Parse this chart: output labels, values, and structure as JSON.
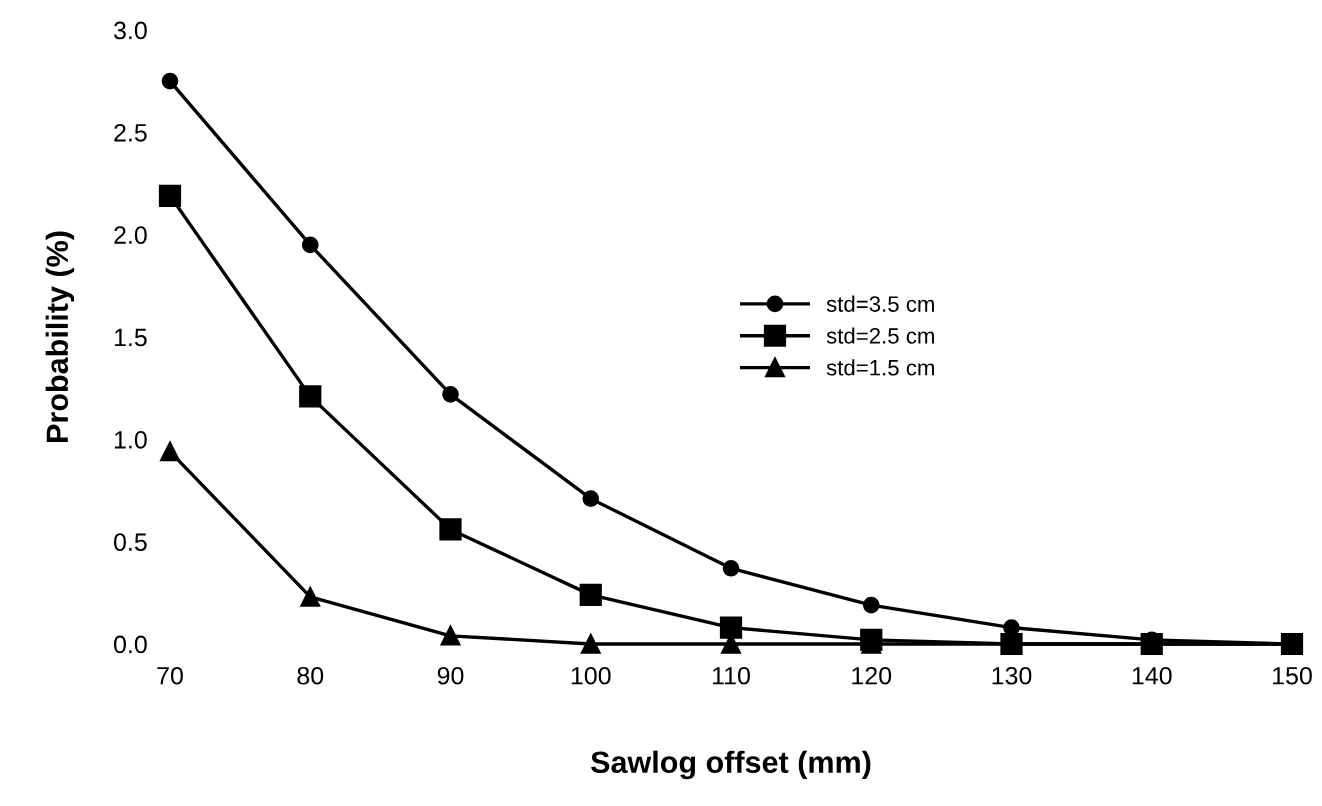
{
  "chart_data": {
    "type": "line",
    "xlabel": "Sawlog offset (mm)",
    "ylabel": "Probability (%)",
    "x": [
      70,
      80,
      90,
      100,
      110,
      120,
      130,
      140,
      150
    ],
    "series": [
      {
        "name": "std=3.5 cm",
        "color": "#000000",
        "marker": "circle",
        "values": [
          2.75,
          1.95,
          1.22,
          0.71,
          0.37,
          0.19,
          0.08,
          0.02,
          0.0
        ]
      },
      {
        "name": "std=2.5 cm",
        "color": "#000000",
        "marker": "square",
        "values": [
          2.19,
          1.21,
          0.56,
          0.24,
          0.08,
          0.02,
          0.0,
          0.0,
          0.0
        ]
      },
      {
        "name": "std=1.5 cm",
        "color": "#000000",
        "marker": "triangle",
        "values": [
          0.94,
          0.23,
          0.04,
          0.0,
          0.0,
          0.0,
          0.0,
          0.0,
          0.0
        ]
      }
    ],
    "xlim": [
      70,
      150
    ],
    "xticks": [
      70,
      80,
      90,
      100,
      110,
      120,
      130,
      140,
      150
    ],
    "ylim": [
      0,
      3.0
    ],
    "yticks": [
      {
        "value": 0,
        "label": "0.0"
      },
      {
        "value": 0.5,
        "label": "0.5"
      },
      {
        "value": 1.0,
        "label": "1.0"
      },
      {
        "value": 1.5,
        "label": "1.5"
      },
      {
        "value": 2.0,
        "label": "2.0"
      },
      {
        "value": 2.5,
        "label": "2.5"
      },
      {
        "value": 3.0,
        "label": "3.0"
      }
    ],
    "legend": "top right",
    "line_style": "solid"
  }
}
